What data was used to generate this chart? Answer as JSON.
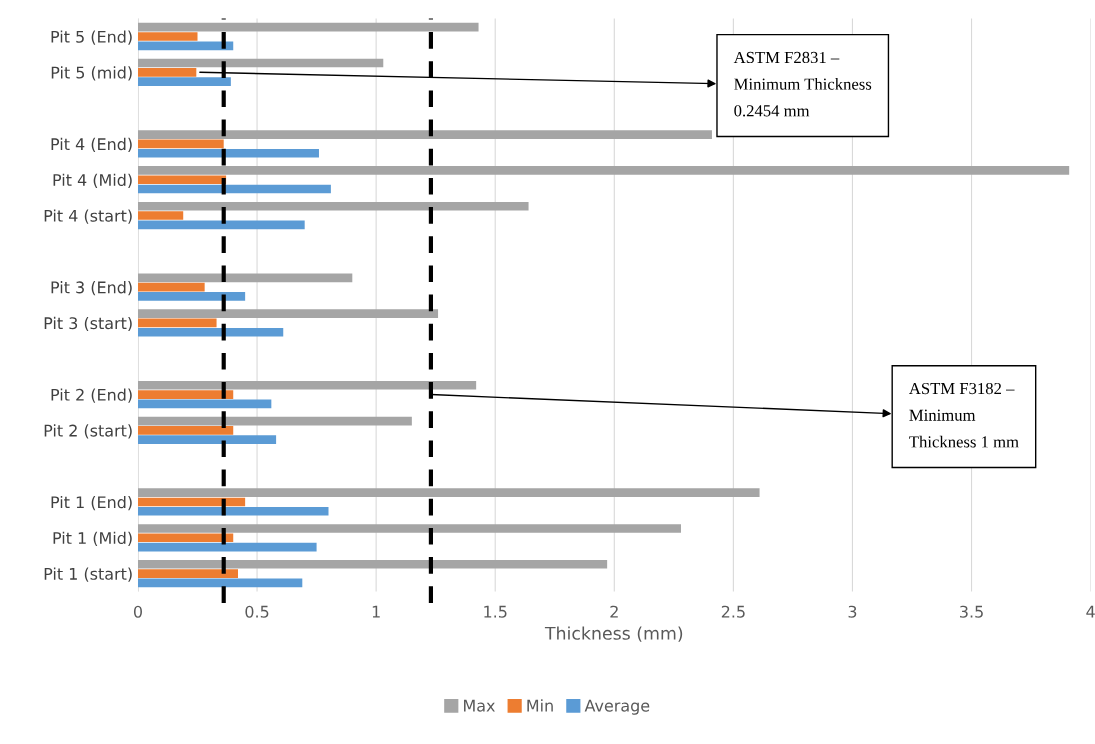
{
  "chart_data": {
    "type": "bar",
    "orientation": "horizontal",
    "xlabel": "Thickness (mm)",
    "categories": [
      "Pit 5 (End)",
      "Pit 5 (mid)",
      null,
      "Pit 4 (End)",
      "Pit 4 (Mid)",
      "Pit 4 (start)",
      null,
      "Pit 3 (End)",
      "Pit 3 (start)",
      null,
      "Pit 2 (End)",
      "Pit 2 (start)",
      null,
      "Pit 1 (End)",
      "Pit 1 (Mid)",
      "Pit 1 (start)"
    ],
    "series": [
      {
        "name": "Max",
        "color": "#a5a5a5",
        "values": [
          1.43,
          1.03,
          null,
          2.41,
          3.91,
          1.64,
          null,
          0.9,
          1.26,
          null,
          1.42,
          1.15,
          null,
          2.61,
          2.28,
          1.97
        ]
      },
      {
        "name": "Min",
        "color": "#ed7d31",
        "values": [
          0.25,
          0.245,
          null,
          0.36,
          0.37,
          0.19,
          null,
          0.28,
          0.33,
          null,
          0.4,
          0.4,
          null,
          0.45,
          0.4,
          0.42
        ]
      },
      {
        "name": "Average",
        "color": "#5b9bd5",
        "values": [
          0.4,
          0.39,
          null,
          0.76,
          0.81,
          0.7,
          null,
          0.45,
          0.61,
          null,
          0.56,
          0.58,
          null,
          0.8,
          0.75,
          0.69
        ]
      }
    ],
    "xlim": [
      0,
      4
    ],
    "xticks": [
      0,
      0.5,
      1,
      1.5,
      2,
      2.5,
      3,
      3.5,
      4
    ],
    "grid": "x",
    "legend": "bottom",
    "ref_lines": [
      {
        "axis": "x",
        "value": 0.36,
        "color": "#000000",
        "line_style": "dashed"
      },
      {
        "axis": "x",
        "value": 1.23,
        "color": "#000000",
        "line_style": "dashed"
      }
    ],
    "annotations": [
      {
        "text": "ASTM F2831 –\nMinimum Thickness\n0.2454 mm",
        "x": 0.26,
        "y": "Pit 5 (mid)"
      },
      {
        "text": "ASTM F3182 –\nMinimum\nThickness 1 mm",
        "x": 1.23,
        "y": "Pit 2 (End)"
      }
    ]
  }
}
